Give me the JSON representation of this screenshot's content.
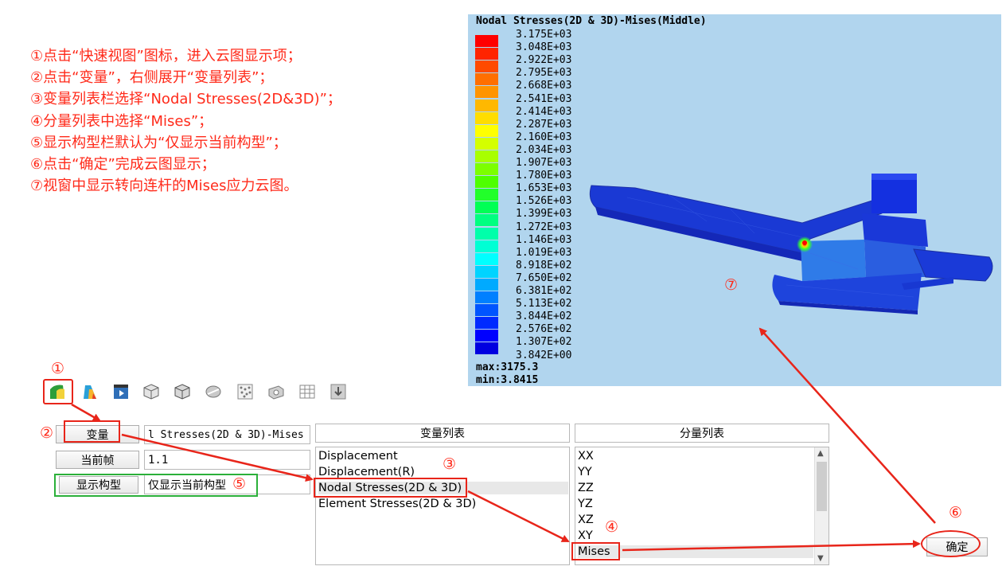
{
  "instructions": [
    "①点击“快速视图”图标，进入云图显示项；",
    "②点击“变量”，右侧展开“变量列表”；",
    "③变量列表栏选择“Nodal Stresses(2D&3D)”；",
    "④分量列表中选择“Mises”；",
    "⑤显示构型栏默认为“仅显示当前构型”；",
    "⑥点击“确定”完成云图显示；",
    "⑦视窗中显示转向连杆的Mises应力云图。"
  ],
  "viewport": {
    "title": "Nodal Stresses(2D & 3D)-Mises(Middle)",
    "legend_values": [
      "3.175E+03",
      "3.048E+03",
      "2.922E+03",
      "2.795E+03",
      "2.668E+03",
      "2.541E+03",
      "2.414E+03",
      "2.287E+03",
      "2.160E+03",
      "2.034E+03",
      "1.907E+03",
      "1.780E+03",
      "1.653E+03",
      "1.526E+03",
      "1.399E+03",
      "1.272E+03",
      "1.146E+03",
      "1.019E+03",
      "8.918E+02",
      "7.650E+02",
      "6.381E+02",
      "5.113E+02",
      "3.844E+02",
      "2.576E+02",
      "1.307E+02",
      "3.842E+00"
    ],
    "legend_colors": [
      "#ff0000",
      "#ff2400",
      "#ff4a00",
      "#ff6f00",
      "#ff9400",
      "#ffb800",
      "#ffdd00",
      "#ffff00",
      "#d4ff00",
      "#a8ff00",
      "#7cff00",
      "#4eff00",
      "#22ff2a",
      "#00ff55",
      "#00ff80",
      "#00ffaa",
      "#00ffd4",
      "#00ffff",
      "#00d4ff",
      "#00aaff",
      "#0080ff",
      "#0055ff",
      "#002aff",
      "#0000ff",
      "#0000e0"
    ],
    "max_label": "max:3175.3",
    "min_label": "min:3.8415"
  },
  "markers": {
    "m1": "①",
    "m2": "②",
    "m3": "③",
    "m4": "④",
    "m5": "⑤",
    "m6": "⑥",
    "m7": "⑦"
  },
  "controls": {
    "variable_button": "变量",
    "variable_value": "l Stresses(2D & 3D)-Mises",
    "frame_button": "当前帧",
    "frame_value": "1.1",
    "config_button": "显示构型",
    "config_value": "仅显示当前构型",
    "ok_button": "确定"
  },
  "variable_list": {
    "header": "变量列表",
    "items": [
      "Displacement",
      "Displacement(R)",
      "Nodal Stresses(2D & 3D)",
      "Element Stresses(2D & 3D)"
    ],
    "selected": "Nodal Stresses(2D & 3D)"
  },
  "component_list": {
    "header": "分量列表",
    "items": [
      "XX",
      "YY",
      "ZZ",
      "YZ",
      "XZ",
      "XY",
      "Mises"
    ],
    "selected": "Mises"
  },
  "toolbar_icons": [
    "quick-view-icon",
    "contour-icon",
    "animation-icon",
    "cube-wire-icon",
    "cube-solid-icon",
    "section-icon",
    "mesh-dots-icon",
    "part-icon",
    "table-icon",
    "download-icon"
  ]
}
